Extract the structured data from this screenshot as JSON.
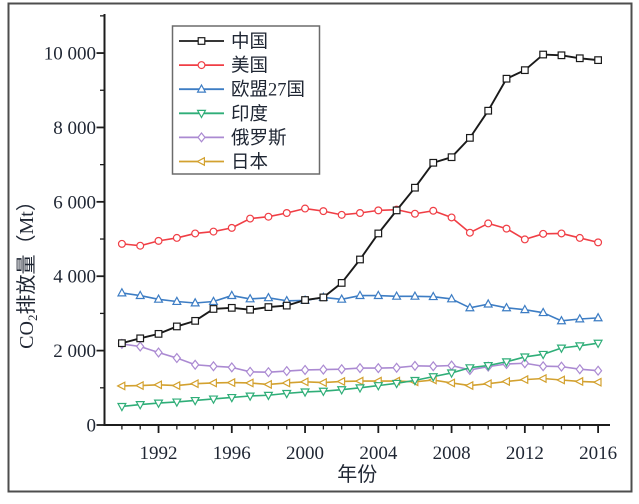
{
  "figure": {
    "background": "#ffffff",
    "border_color": "#4d4d4d",
    "text_color": "#1f2633",
    "axis_color": "#1c1c1c",
    "marker_fill": "#ffffff"
  },
  "chart_data": {
    "type": "line",
    "title": "",
    "xlabel": "年份",
    "ylabel": "CO₂排放量（Mt）",
    "ylabel_parts": {
      "prefix": "CO",
      "subscript": "2",
      "suffix": "排放量（Mt）"
    },
    "x": [
      1990,
      1991,
      1992,
      1993,
      1994,
      1995,
      1996,
      1997,
      1998,
      1999,
      2000,
      2001,
      2002,
      2003,
      2004,
      2005,
      2006,
      2007,
      2008,
      2009,
      2010,
      2011,
      2012,
      2013,
      2014,
      2015,
      2016
    ],
    "xlim": [
      1989.05,
      2016.65
    ],
    "ylim": [
      0,
      11050
    ],
    "xticks_major": [
      1992,
      1996,
      2000,
      2004,
      2008,
      2012,
      2016
    ],
    "xtick_labels": [
      "1992",
      "1996",
      "2000",
      "2004",
      "2008",
      "2012",
      "2016"
    ],
    "xticks_minor": [
      1990,
      1991,
      1993,
      1994,
      1995,
      1997,
      1998,
      1999,
      2001,
      2002,
      2003,
      2005,
      2006,
      2007,
      2009,
      2010,
      2011,
      2013,
      2014,
      2015
    ],
    "yticks_major": [
      0,
      2000,
      4000,
      6000,
      8000,
      10000
    ],
    "ytick_labels": [
      "0",
      "2 000",
      "4 000",
      "6 000",
      "8 000",
      "10 000"
    ],
    "yticks_minor": [
      1000,
      3000,
      5000,
      7000,
      9000,
      11000
    ],
    "grid": false,
    "legend_position": "upper-left-inside",
    "series": [
      {
        "key": "china",
        "name": "中国",
        "color": "#1a1a1a",
        "marker": "square",
        "values": [
          2200,
          2330,
          2450,
          2650,
          2800,
          3120,
          3150,
          3100,
          3170,
          3210,
          3360,
          3430,
          3820,
          4450,
          5150,
          5770,
          6380,
          7050,
          7200,
          7720,
          8450,
          9310,
          9540,
          9960,
          9940,
          9860,
          9810
        ]
      },
      {
        "key": "usa",
        "name": "美国",
        "color": "#f03e45",
        "marker": "circle",
        "values": [
          4870,
          4820,
          4950,
          5030,
          5150,
          5200,
          5300,
          5550,
          5600,
          5700,
          5820,
          5750,
          5650,
          5700,
          5770,
          5790,
          5680,
          5760,
          5580,
          5170,
          5420,
          5280,
          4990,
          5140,
          5150,
          5030,
          4910
        ]
      },
      {
        "key": "eu27",
        "name": "欧盟27国",
        "color": "#3d7dc4",
        "marker": "triangle-up",
        "values": [
          3550,
          3480,
          3380,
          3320,
          3280,
          3320,
          3480,
          3390,
          3420,
          3340,
          3350,
          3430,
          3380,
          3480,
          3480,
          3460,
          3460,
          3450,
          3390,
          3150,
          3250,
          3150,
          3100,
          3020,
          2800,
          2850,
          2880
        ]
      },
      {
        "key": "india",
        "name": "印度",
        "color": "#2fae78",
        "marker": "triangle-down",
        "values": [
          500,
          550,
          590,
          620,
          660,
          700,
          740,
          780,
          800,
          850,
          890,
          910,
          950,
          1000,
          1060,
          1120,
          1200,
          1300,
          1400,
          1540,
          1600,
          1700,
          1830,
          1900,
          2070,
          2130,
          2200
        ]
      },
      {
        "key": "russia",
        "name": "俄罗斯",
        "color": "#ab8ad2",
        "marker": "diamond",
        "values": [
          2180,
          2110,
          1950,
          1800,
          1620,
          1580,
          1550,
          1430,
          1420,
          1450,
          1480,
          1490,
          1500,
          1530,
          1530,
          1540,
          1590,
          1580,
          1600,
          1480,
          1570,
          1640,
          1660,
          1580,
          1570,
          1500,
          1460
        ]
      },
      {
        "key": "japan",
        "name": "日本",
        "color": "#d3a12f",
        "marker": "triangle-left",
        "values": [
          1050,
          1060,
          1080,
          1060,
          1110,
          1130,
          1140,
          1130,
          1090,
          1130,
          1160,
          1140,
          1170,
          1180,
          1180,
          1180,
          1160,
          1210,
          1130,
          1060,
          1110,
          1170,
          1220,
          1250,
          1210,
          1170,
          1150
        ]
      }
    ]
  }
}
